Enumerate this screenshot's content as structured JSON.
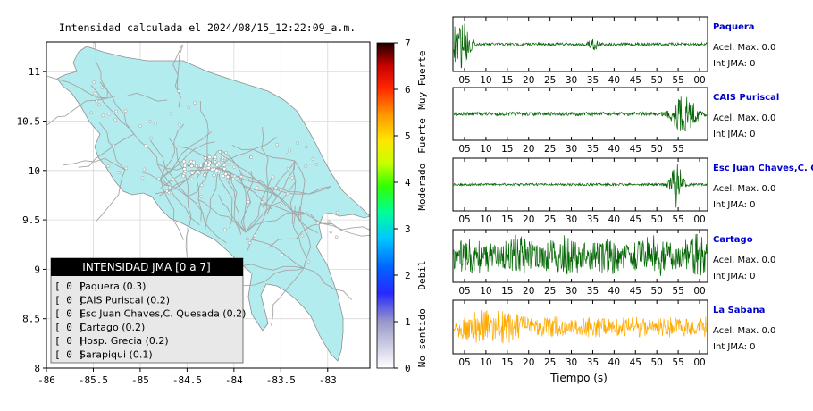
{
  "map": {
    "title": "Intensidad calculada el 2024/08/15_12:22:09_a.m.",
    "x_ticks": [
      "-86",
      "-85.5",
      "-85",
      "-84.5",
      "-84",
      "-83.5",
      "-83"
    ],
    "y_ticks": [
      "11",
      "10.5",
      "10",
      "9.5",
      "9",
      "8.5",
      "8"
    ],
    "xlim": [
      -86,
      -82.55
    ],
    "ylim": [
      8,
      11.3
    ]
  },
  "legend": {
    "title": "INTENSIDAD JMA [0 a 7]",
    "items": [
      {
        "value": "[ 0 ]",
        "station": "Paquera (0.3)"
      },
      {
        "value": "[ 0 ]",
        "station": "CAIS Puriscal (0.2)"
      },
      {
        "value": "[ 0 ]",
        "station": "Esc Juan Chaves,C. Quesada (0.2)"
      },
      {
        "value": "[ 0 ]",
        "station": "Cartago (0.2)"
      },
      {
        "value": "[ 0 ]",
        "station": "Hosp. Grecia (0.2)"
      },
      {
        "value": "[ 0 ]",
        "station": "Sarapiqui (0.1)"
      }
    ]
  },
  "colorbar": {
    "ticks": [
      "0",
      "1",
      "2",
      "3",
      "4",
      "5",
      "6",
      "7"
    ],
    "labels": [
      "No sentido",
      "Debil",
      "Moderado",
      "Fuerte",
      "Muy Fuerte"
    ]
  },
  "colors": {
    "land": "#b3ecee",
    "road": "#a5a5a5",
    "trace_green": "#006400",
    "trace_orange": "#ffaa00",
    "station_blue": "#0000cc"
  },
  "traces_xlabel": "Tiempo (s)",
  "traces": [
    {
      "station": "Paquera",
      "acel": "Acel. Max. 0.0",
      "int": "Int JMA: 0",
      "color": "green",
      "ticks": [
        "05",
        "10",
        "15",
        "20",
        "25",
        "30",
        "35",
        "40",
        "45",
        "50",
        "55",
        "00"
      ]
    },
    {
      "station": "CAIS Puriscal",
      "acel": "Acel. Max. 0.0",
      "int": "Int JMA: 0",
      "color": "green",
      "ticks": [
        "05",
        "10",
        "15",
        "20",
        "25",
        "30",
        "35",
        "40",
        "45",
        "50",
        "55"
      ]
    },
    {
      "station": "Esc Juan Chaves,C. Qu",
      "acel": "Acel. Max. 0.0",
      "int": "Int JMA: 0",
      "color": "green",
      "ticks": [
        "05",
        "10",
        "15",
        "20",
        "25",
        "30",
        "35",
        "40",
        "45",
        "50",
        "55",
        "00"
      ]
    },
    {
      "station": "Cartago",
      "acel": "Acel. Max. 0.0",
      "int": "Int JMA: 0",
      "color": "green",
      "ticks": [
        "05",
        "10",
        "15",
        "20",
        "25",
        "30",
        "35",
        "40",
        "45",
        "50",
        "55",
        "00"
      ]
    },
    {
      "station": "La Sabana",
      "acel": "Acel. Max. 0.0",
      "int": "Int JMA: 0",
      "color": "orange",
      "ticks": [
        "05",
        "10",
        "15",
        "20",
        "25",
        "30",
        "35",
        "40",
        "45",
        "50",
        "55",
        "00"
      ]
    }
  ],
  "chart_data": [
    {
      "type": "heatmap",
      "title": "Intensidad calculada el 2024/08/15_12:22:09_a.m.",
      "xlim": [
        -86,
        -82.55
      ],
      "ylim": [
        8,
        11.3
      ],
      "colorbar_range": [
        0,
        7
      ],
      "stations": [
        {
          "name": "Paquera",
          "intensity": 0.3
        },
        {
          "name": "CAIS Puriscal",
          "intensity": 0.2
        },
        {
          "name": "Esc Juan Chaves,C. Quesada",
          "intensity": 0.2
        },
        {
          "name": "Cartago",
          "intensity": 0.2
        },
        {
          "name": "Hosp. Grecia",
          "intensity": 0.2
        },
        {
          "name": "Sarapiqui",
          "intensity": 0.1
        }
      ]
    },
    {
      "type": "line",
      "xlabel": "Tiempo (s)",
      "series": [
        {
          "name": "Paquera",
          "acel_max": 0.0,
          "int_jma": 0
        },
        {
          "name": "CAIS Puriscal",
          "acel_max": 0.0,
          "int_jma": 0
        },
        {
          "name": "Esc Juan Chaves,C. Qu",
          "acel_max": 0.0,
          "int_jma": 0
        },
        {
          "name": "Cartago",
          "acel_max": 0.0,
          "int_jma": 0
        },
        {
          "name": "La Sabana",
          "acel_max": 0.0,
          "int_jma": 0
        }
      ]
    }
  ]
}
